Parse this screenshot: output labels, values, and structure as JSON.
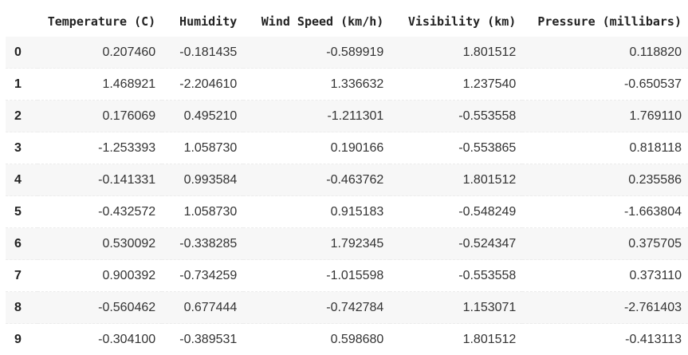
{
  "table": {
    "index_header": "",
    "columns": [
      "Temperature (C)",
      "Humidity",
      "Wind Speed (km/h)",
      "Visibility (km)",
      "Pressure (millibars)"
    ],
    "rows": [
      {
        "index": "0",
        "cells": [
          "0.207460",
          "-0.181435",
          "-0.589919",
          "1.801512",
          "0.118820"
        ]
      },
      {
        "index": "1",
        "cells": [
          "1.468921",
          "-2.204610",
          "1.336632",
          "1.237540",
          "-0.650537"
        ]
      },
      {
        "index": "2",
        "cells": [
          "0.176069",
          "0.495210",
          "-1.211301",
          "-0.553558",
          "1.769110"
        ]
      },
      {
        "index": "3",
        "cells": [
          "-1.253393",
          "1.058730",
          "0.190166",
          "-0.553865",
          "0.818118"
        ]
      },
      {
        "index": "4",
        "cells": [
          "-0.141331",
          "0.993584",
          "-0.463762",
          "1.801512",
          "0.235586"
        ]
      },
      {
        "index": "5",
        "cells": [
          "-0.432572",
          "1.058730",
          "0.915183",
          "-0.548249",
          "-1.663804"
        ]
      },
      {
        "index": "6",
        "cells": [
          "0.530092",
          "-0.338285",
          "1.792345",
          "-0.524347",
          "0.375705"
        ]
      },
      {
        "index": "7",
        "cells": [
          "0.900392",
          "-0.734259",
          "-1.015598",
          "-0.553558",
          "0.373110"
        ]
      },
      {
        "index": "8",
        "cells": [
          "-0.560462",
          "0.677444",
          "-0.742784",
          "1.153071",
          "-2.761403"
        ]
      },
      {
        "index": "9",
        "cells": [
          "-0.304100",
          "-0.389531",
          "0.598680",
          "1.801512",
          "-0.413113"
        ]
      }
    ]
  }
}
